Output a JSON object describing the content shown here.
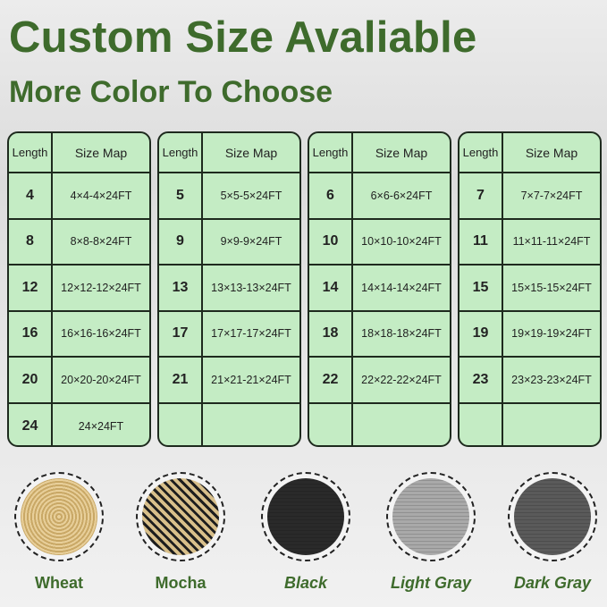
{
  "title": "Custom Size Avaliable",
  "subtitle": "More Color To Choose",
  "table_headers": {
    "length": "Length",
    "size_map": "Size Map"
  },
  "tables": [
    {
      "rows": [
        [
          "4",
          "4×4-4×24FT"
        ],
        [
          "8",
          "8×8-8×24FT"
        ],
        [
          "12",
          "12×12-12×24FT"
        ],
        [
          "16",
          "16×16-16×24FT"
        ],
        [
          "20",
          "20×20-20×24FT"
        ],
        [
          "24",
          "24×24FT"
        ]
      ]
    },
    {
      "rows": [
        [
          "5",
          "5×5-5×24FT"
        ],
        [
          "9",
          "9×9-9×24FT"
        ],
        [
          "13",
          "13×13-13×24FT"
        ],
        [
          "17",
          "17×17-17×24FT"
        ],
        [
          "21",
          "21×21-21×24FT"
        ],
        [
          "",
          ""
        ]
      ]
    },
    {
      "rows": [
        [
          "6",
          "6×6-6×24FT"
        ],
        [
          "10",
          "10×10-10×24FT"
        ],
        [
          "14",
          "14×14-14×24FT"
        ],
        [
          "18",
          "18×18-18×24FT"
        ],
        [
          "22",
          "22×22-22×24FT"
        ],
        [
          "",
          ""
        ]
      ]
    },
    {
      "rows": [
        [
          "7",
          "7×7-7×24FT"
        ],
        [
          "11",
          "11×11-11×24FT"
        ],
        [
          "15",
          "15×15-15×24FT"
        ],
        [
          "19",
          "19×19-19×24FT"
        ],
        [
          "23",
          "23×23-23×24FT"
        ],
        [
          "",
          ""
        ]
      ]
    }
  ],
  "colors": [
    {
      "name": "Wheat",
      "swatch": "#e0c48c",
      "italic": false
    },
    {
      "name": "Mocha",
      "swatch": "#3a342a",
      "italic": false
    },
    {
      "name": "Black",
      "swatch": "#2a2a2a",
      "italic": true
    },
    {
      "name": "Light Gray",
      "swatch": "#a9a9a9",
      "italic": true
    },
    {
      "name": "Dark Gray",
      "swatch": "#5a5a5a",
      "italic": true
    }
  ],
  "accent": "#3e6b2c"
}
